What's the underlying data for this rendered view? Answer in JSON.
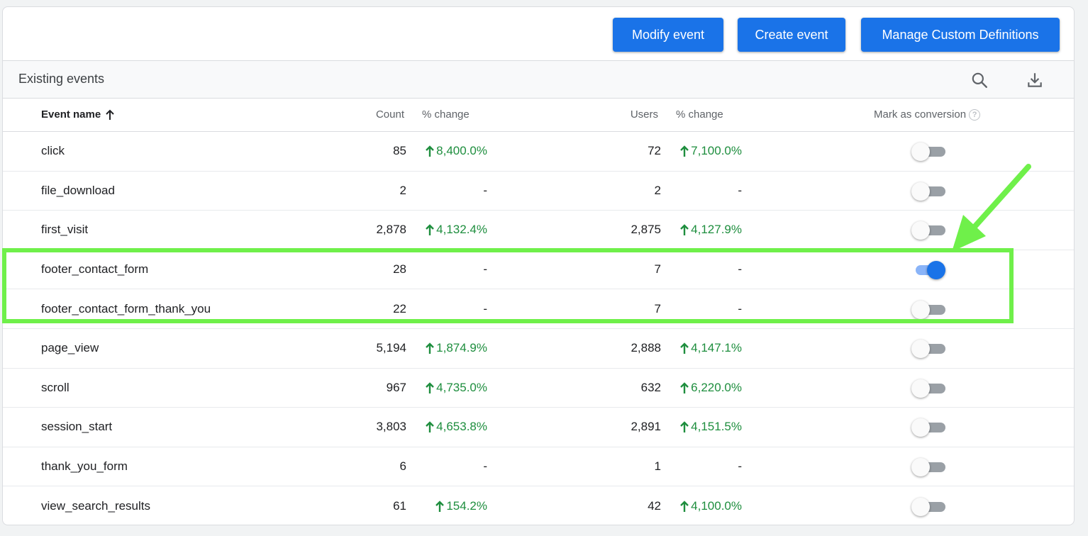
{
  "toolbar": {
    "modify_label": "Modify event",
    "create_label": "Create event",
    "manage_label": "Manage Custom Definitions"
  },
  "section": {
    "title": "Existing events"
  },
  "icons": {
    "search": "search-icon",
    "download": "download-icon",
    "sort": "arrow-up-icon",
    "help": "help-icon"
  },
  "colors": {
    "primary": "#1a73e8",
    "positive": "#1e8e3e",
    "highlight": "#6ff04a",
    "toggle_off": "#9aa0a6"
  },
  "table": {
    "headers": {
      "event_name": "Event name",
      "count": "Count",
      "count_change": "% change",
      "users": "Users",
      "users_change": "% change",
      "conversion": "Mark as conversion",
      "help": "?"
    },
    "rows": [
      {
        "name": "click",
        "count": "85",
        "count_change": "8,400.0%",
        "users": "72",
        "users_change": "7,100.0%",
        "conversion": false
      },
      {
        "name": "file_download",
        "count": "2",
        "count_change": "-",
        "users": "2",
        "users_change": "-",
        "conversion": false
      },
      {
        "name": "first_visit",
        "count": "2,878",
        "count_change": "4,132.4%",
        "users": "2,875",
        "users_change": "4,127.9%",
        "conversion": false
      },
      {
        "name": "footer_contact_form",
        "count": "28",
        "count_change": "-",
        "users": "7",
        "users_change": "-",
        "conversion": true
      },
      {
        "name": "footer_contact_form_thank_you",
        "count": "22",
        "count_change": "-",
        "users": "7",
        "users_change": "-",
        "conversion": false
      },
      {
        "name": "page_view",
        "count": "5,194",
        "count_change": "1,874.9%",
        "users": "2,888",
        "users_change": "4,147.1%",
        "conversion": false
      },
      {
        "name": "scroll",
        "count": "967",
        "count_change": "4,735.0%",
        "users": "632",
        "users_change": "6,220.0%",
        "conversion": false
      },
      {
        "name": "session_start",
        "count": "3,803",
        "count_change": "4,653.8%",
        "users": "2,891",
        "users_change": "4,151.5%",
        "conversion": false
      },
      {
        "name": "thank_you_form",
        "count": "6",
        "count_change": "-",
        "users": "1",
        "users_change": "-",
        "conversion": false
      },
      {
        "name": "view_search_results",
        "count": "61",
        "count_change": "154.2%",
        "users": "42",
        "users_change": "4,100.0%",
        "conversion": false
      }
    ]
  }
}
